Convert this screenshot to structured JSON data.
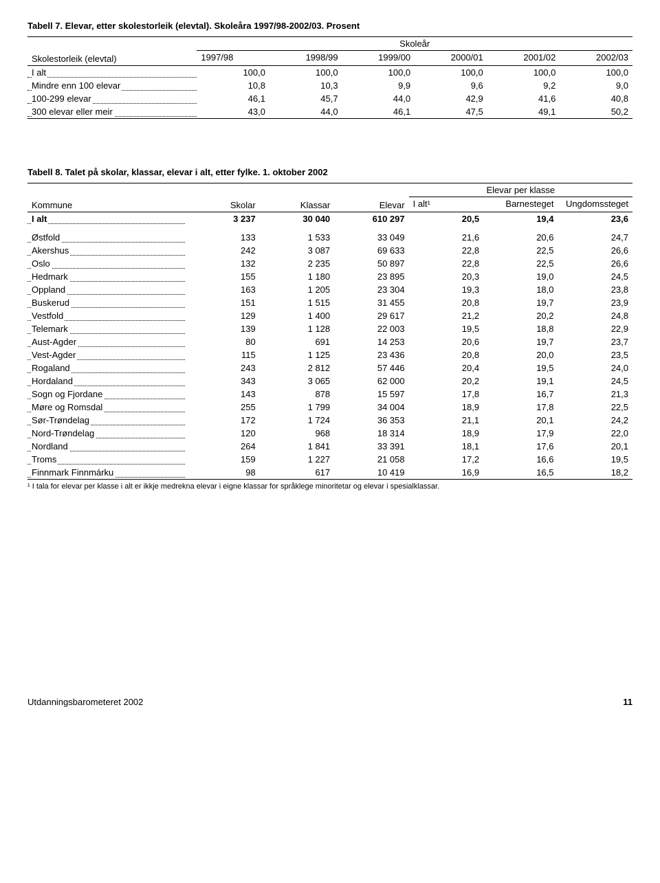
{
  "table7": {
    "title": "Tabell 7.   Elevar, etter skolestorleik (elevtal). Skoleåra 1997/98-2002/03. Prosent",
    "corner": "Skolestorleik (elevtal)",
    "spanner": "Skoleår",
    "cols": [
      "1997/98",
      "1998/99",
      "1999/00",
      "2000/01",
      "2001/02",
      "2002/03"
    ],
    "rows": [
      {
        "label": "I alt",
        "vals": [
          "100,0",
          "100,0",
          "100,0",
          "100,0",
          "100,0",
          "100,0"
        ]
      },
      {
        "label": "Mindre enn 100 elevar",
        "vals": [
          "10,8",
          "10,3",
          "9,9",
          "9,6",
          "9,2",
          "9,0"
        ],
        "dottail": ".."
      },
      {
        "label": "100-299 elevar",
        "vals": [
          "46,1",
          "45,7",
          "44,0",
          "42,9",
          "41,6",
          "40,8"
        ]
      },
      {
        "label": "300 elevar eller meir",
        "vals": [
          "43,0",
          "44,0",
          "46,1",
          "47,5",
          "49,1",
          "50,2"
        ]
      }
    ]
  },
  "table8": {
    "title": "Tabell 8.   Talet på skolar, klassar, elevar i alt, etter fylke. 1. oktober 2002",
    "corner": "Kommune",
    "spanner": "Elevar per klasse",
    "cols_left": [
      "Skolar",
      "Klassar",
      "Elevar"
    ],
    "cols_right": [
      "I alt¹",
      "Barnesteget",
      "Ungdomssteget"
    ],
    "total": {
      "label": "I alt",
      "vals": [
        "3 237",
        "30 040",
        "610 297",
        "20,5",
        "19,4",
        "23,6"
      ]
    },
    "rows": [
      {
        "label": "Østfold",
        "vals": [
          "133",
          "1 533",
          "33 049",
          "21,6",
          "20,6",
          "24,7"
        ]
      },
      {
        "label": "Akershus",
        "vals": [
          "242",
          "3 087",
          "69 633",
          "22,8",
          "22,5",
          "26,6"
        ]
      },
      {
        "label": "Oslo",
        "vals": [
          "132",
          "2 235",
          "50 897",
          "22,8",
          "22,5",
          "26,6"
        ]
      },
      {
        "label": "Hedmark",
        "vals": [
          "155",
          "1 180",
          "23 895",
          "20,3",
          "19,0",
          "24,5"
        ]
      },
      {
        "label": "Oppland",
        "vals": [
          "163",
          "1 205",
          "23 304",
          "19,3",
          "18,0",
          "23,8"
        ]
      },
      {
        "label": "Buskerud",
        "vals": [
          "151",
          "1 515",
          "31 455",
          "20,8",
          "19,7",
          "23,9"
        ]
      },
      {
        "label": "Vestfold",
        "vals": [
          "129",
          "1 400",
          "29 617",
          "21,2",
          "20,2",
          "24,8"
        ]
      },
      {
        "label": "Telemark",
        "vals": [
          "139",
          "1 128",
          "22 003",
          "19,5",
          "18,8",
          "22,9"
        ]
      },
      {
        "label": "Aust-Agder",
        "vals": [
          "80",
          "691",
          "14 253",
          "20,6",
          "19,7",
          "23,7"
        ]
      },
      {
        "label": "Vest-Agder",
        "vals": [
          "115",
          "1 125",
          "23 436",
          "20,8",
          "20,0",
          "23,5"
        ]
      },
      {
        "label": "Rogaland",
        "vals": [
          "243",
          "2 812",
          "57 446",
          "20,4",
          "19,5",
          "24,0"
        ]
      },
      {
        "label": "Hordaland",
        "vals": [
          "343",
          "3 065",
          "62 000",
          "20,2",
          "19,1",
          "24,5"
        ]
      },
      {
        "label": "Sogn og Fjordane",
        "vals": [
          "143",
          "878",
          "15 597",
          "17,8",
          "16,7",
          "21,3"
        ]
      },
      {
        "label": "Møre og Romsdal",
        "vals": [
          "255",
          "1 799",
          "34 004",
          "18,9",
          "17,8",
          "22,5"
        ]
      },
      {
        "label": "Sør-Trøndelag",
        "vals": [
          "172",
          "1 724",
          "36 353",
          "21,1",
          "20,1",
          "24,2"
        ]
      },
      {
        "label": "Nord-Trøndelag",
        "vals": [
          "120",
          "968",
          "18 314",
          "18,9",
          "17,9",
          "22,0"
        ]
      },
      {
        "label": "Nordland",
        "vals": [
          "264",
          "1 841",
          "33 391",
          "18,1",
          "17,6",
          "20,1"
        ]
      },
      {
        "label": "Troms",
        "vals": [
          "159",
          "1 227",
          "21 058",
          "17,2",
          "16,6",
          "19,5"
        ]
      },
      {
        "label": "Finnmark Finnmárku",
        "vals": [
          "98",
          "617",
          "10 419",
          "16,9",
          "16,5",
          "18,2"
        ]
      }
    ],
    "footnote": "¹ I tala for elevar per klasse i alt er ikkje medrekna elevar i eigne klassar for språklege minoritetar og elevar i spesialklassar."
  },
  "footer": {
    "left": "Utdanningsbarometeret 2002",
    "page": "11"
  }
}
